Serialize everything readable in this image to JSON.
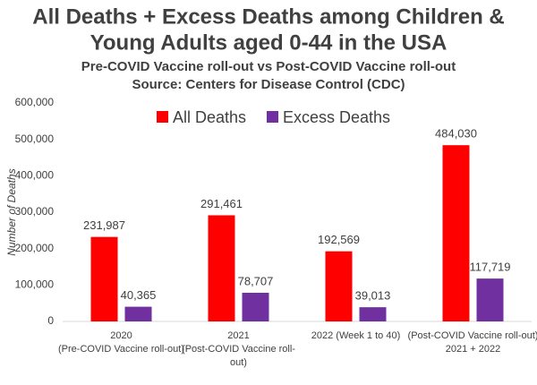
{
  "chart_data": {
    "type": "bar",
    "title": [
      "All Deaths + Excess Deaths among Children &",
      "Young Adults aged 0-44 in the USA"
    ],
    "subtitle": [
      "Pre-COVID Vaccine roll-out vs Post-COVID Vaccine roll-out",
      "Source: Centers for Disease Control (CDC)"
    ],
    "y_label": "Number of Deaths",
    "categories": [
      [
        "2020",
        "(Pre-COVID Vaccine roll-out)"
      ],
      [
        "2021",
        "(Post-COVID Vaccine roll-",
        "out)"
      ],
      [
        "2022 (Week 1 to 40)"
      ],
      [
        "(Post-COVID Vaccine roll-out)",
        "2021 + 2022"
      ]
    ],
    "series": [
      {
        "name": "All Deaths",
        "color": "#ff0000",
        "values": [
          231987,
          291461,
          192569,
          484030
        ],
        "value_labels": [
          "231,987",
          "291,461",
          "192,569",
          "484,030"
        ]
      },
      {
        "name": "Excess Deaths",
        "color": "#7030a0",
        "values": [
          40365,
          78707,
          39013,
          117719
        ],
        "value_labels": [
          "40,365",
          "78,707",
          "39,013",
          "117,719"
        ]
      }
    ],
    "ylim": [
      0,
      600000
    ],
    "yticks": [
      0,
      {
        "value": 100000,
        "label": "100,000"
      },
      {
        "value": 200000,
        "label": "200,000"
      },
      {
        "value": 300000,
        "label": "300,000"
      },
      {
        "value": 400000,
        "label": "400,000"
      },
      {
        "value": 500000,
        "label": "500,000"
      },
      {
        "value": 600000,
        "label": "600,000"
      }
    ],
    "legend": "top",
    "grid": false
  }
}
